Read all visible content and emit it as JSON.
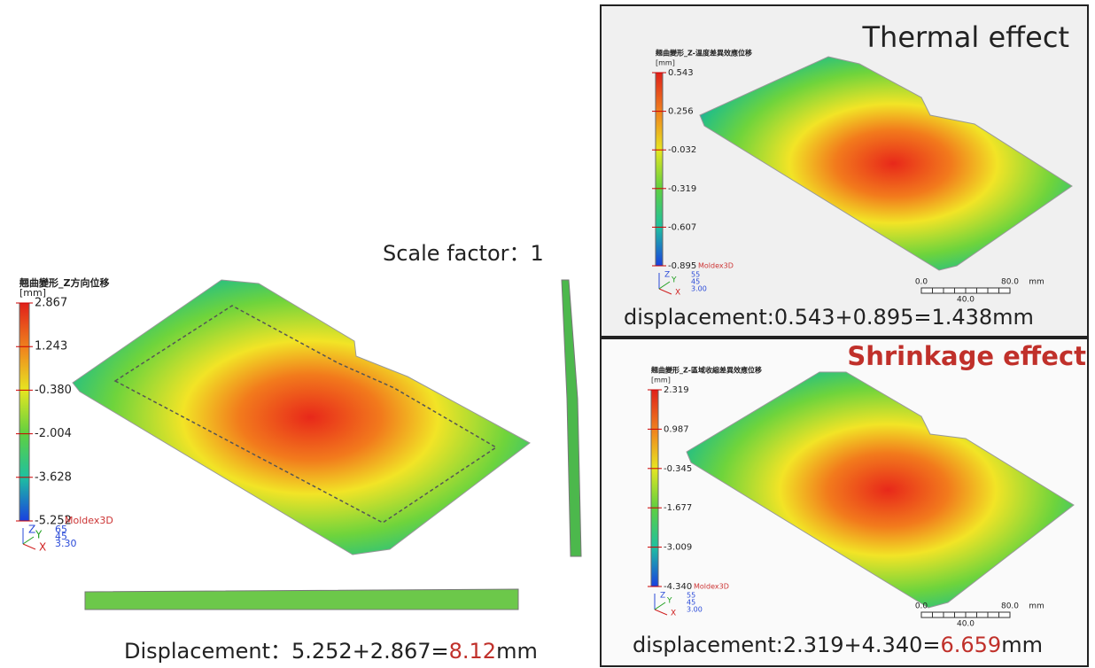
{
  "main": {
    "scale_label": "Scale factor：1",
    "legend": {
      "title": "翹曲變形_Z方向位移",
      "unit": "[mm]",
      "ticks": [
        "2.867",
        "1.243",
        "-0.380",
        "-2.004",
        "-3.628",
        "-5.252"
      ],
      "brand": "Moldex3D",
      "axes": [
        "Z",
        "Y",
        "X"
      ],
      "view": [
        "65",
        "45",
        "3.30"
      ]
    },
    "result": {
      "prefix": "Displacement：5.252+2.867=",
      "value": "8.12",
      "suffix": "mm"
    }
  },
  "thermal": {
    "title": "Thermal effect",
    "legend": {
      "title": "翹曲變形_Z-溫度差異效應位移",
      "unit": "[mm]",
      "ticks": [
        "0.543",
        "0.256",
        "-0.032",
        "-0.319",
        "-0.607",
        "-0.895"
      ],
      "brand": "Moldex3D",
      "axes": [
        "Z",
        "Y",
        "X"
      ],
      "view": [
        "55",
        "45",
        "3.00"
      ]
    },
    "scale_bar": [
      "0.0",
      "40.0",
      "80.0",
      "mm"
    ],
    "result": {
      "prefix": "displacement:0.543+0.895=1.438mm"
    }
  },
  "shrinkage": {
    "title": "Shrinkage effect",
    "legend": {
      "title": "翹曲變形_Z-區域收縮差異效應位移",
      "unit": "[mm]",
      "ticks": [
        "2.319",
        "0.987",
        "-0.345",
        "-1.677",
        "-3.009",
        "-4.340"
      ],
      "brand": "Moldex3D",
      "axes": [
        "Z",
        "Y",
        "X"
      ],
      "view": [
        "55",
        "45",
        "3.00"
      ]
    },
    "scale_bar": [
      "0.0",
      "40.0",
      "80.0",
      "mm"
    ],
    "result": {
      "prefix": "displacement:2.319+4.340=",
      "value": "6.659",
      "suffix": "mm"
    }
  }
}
